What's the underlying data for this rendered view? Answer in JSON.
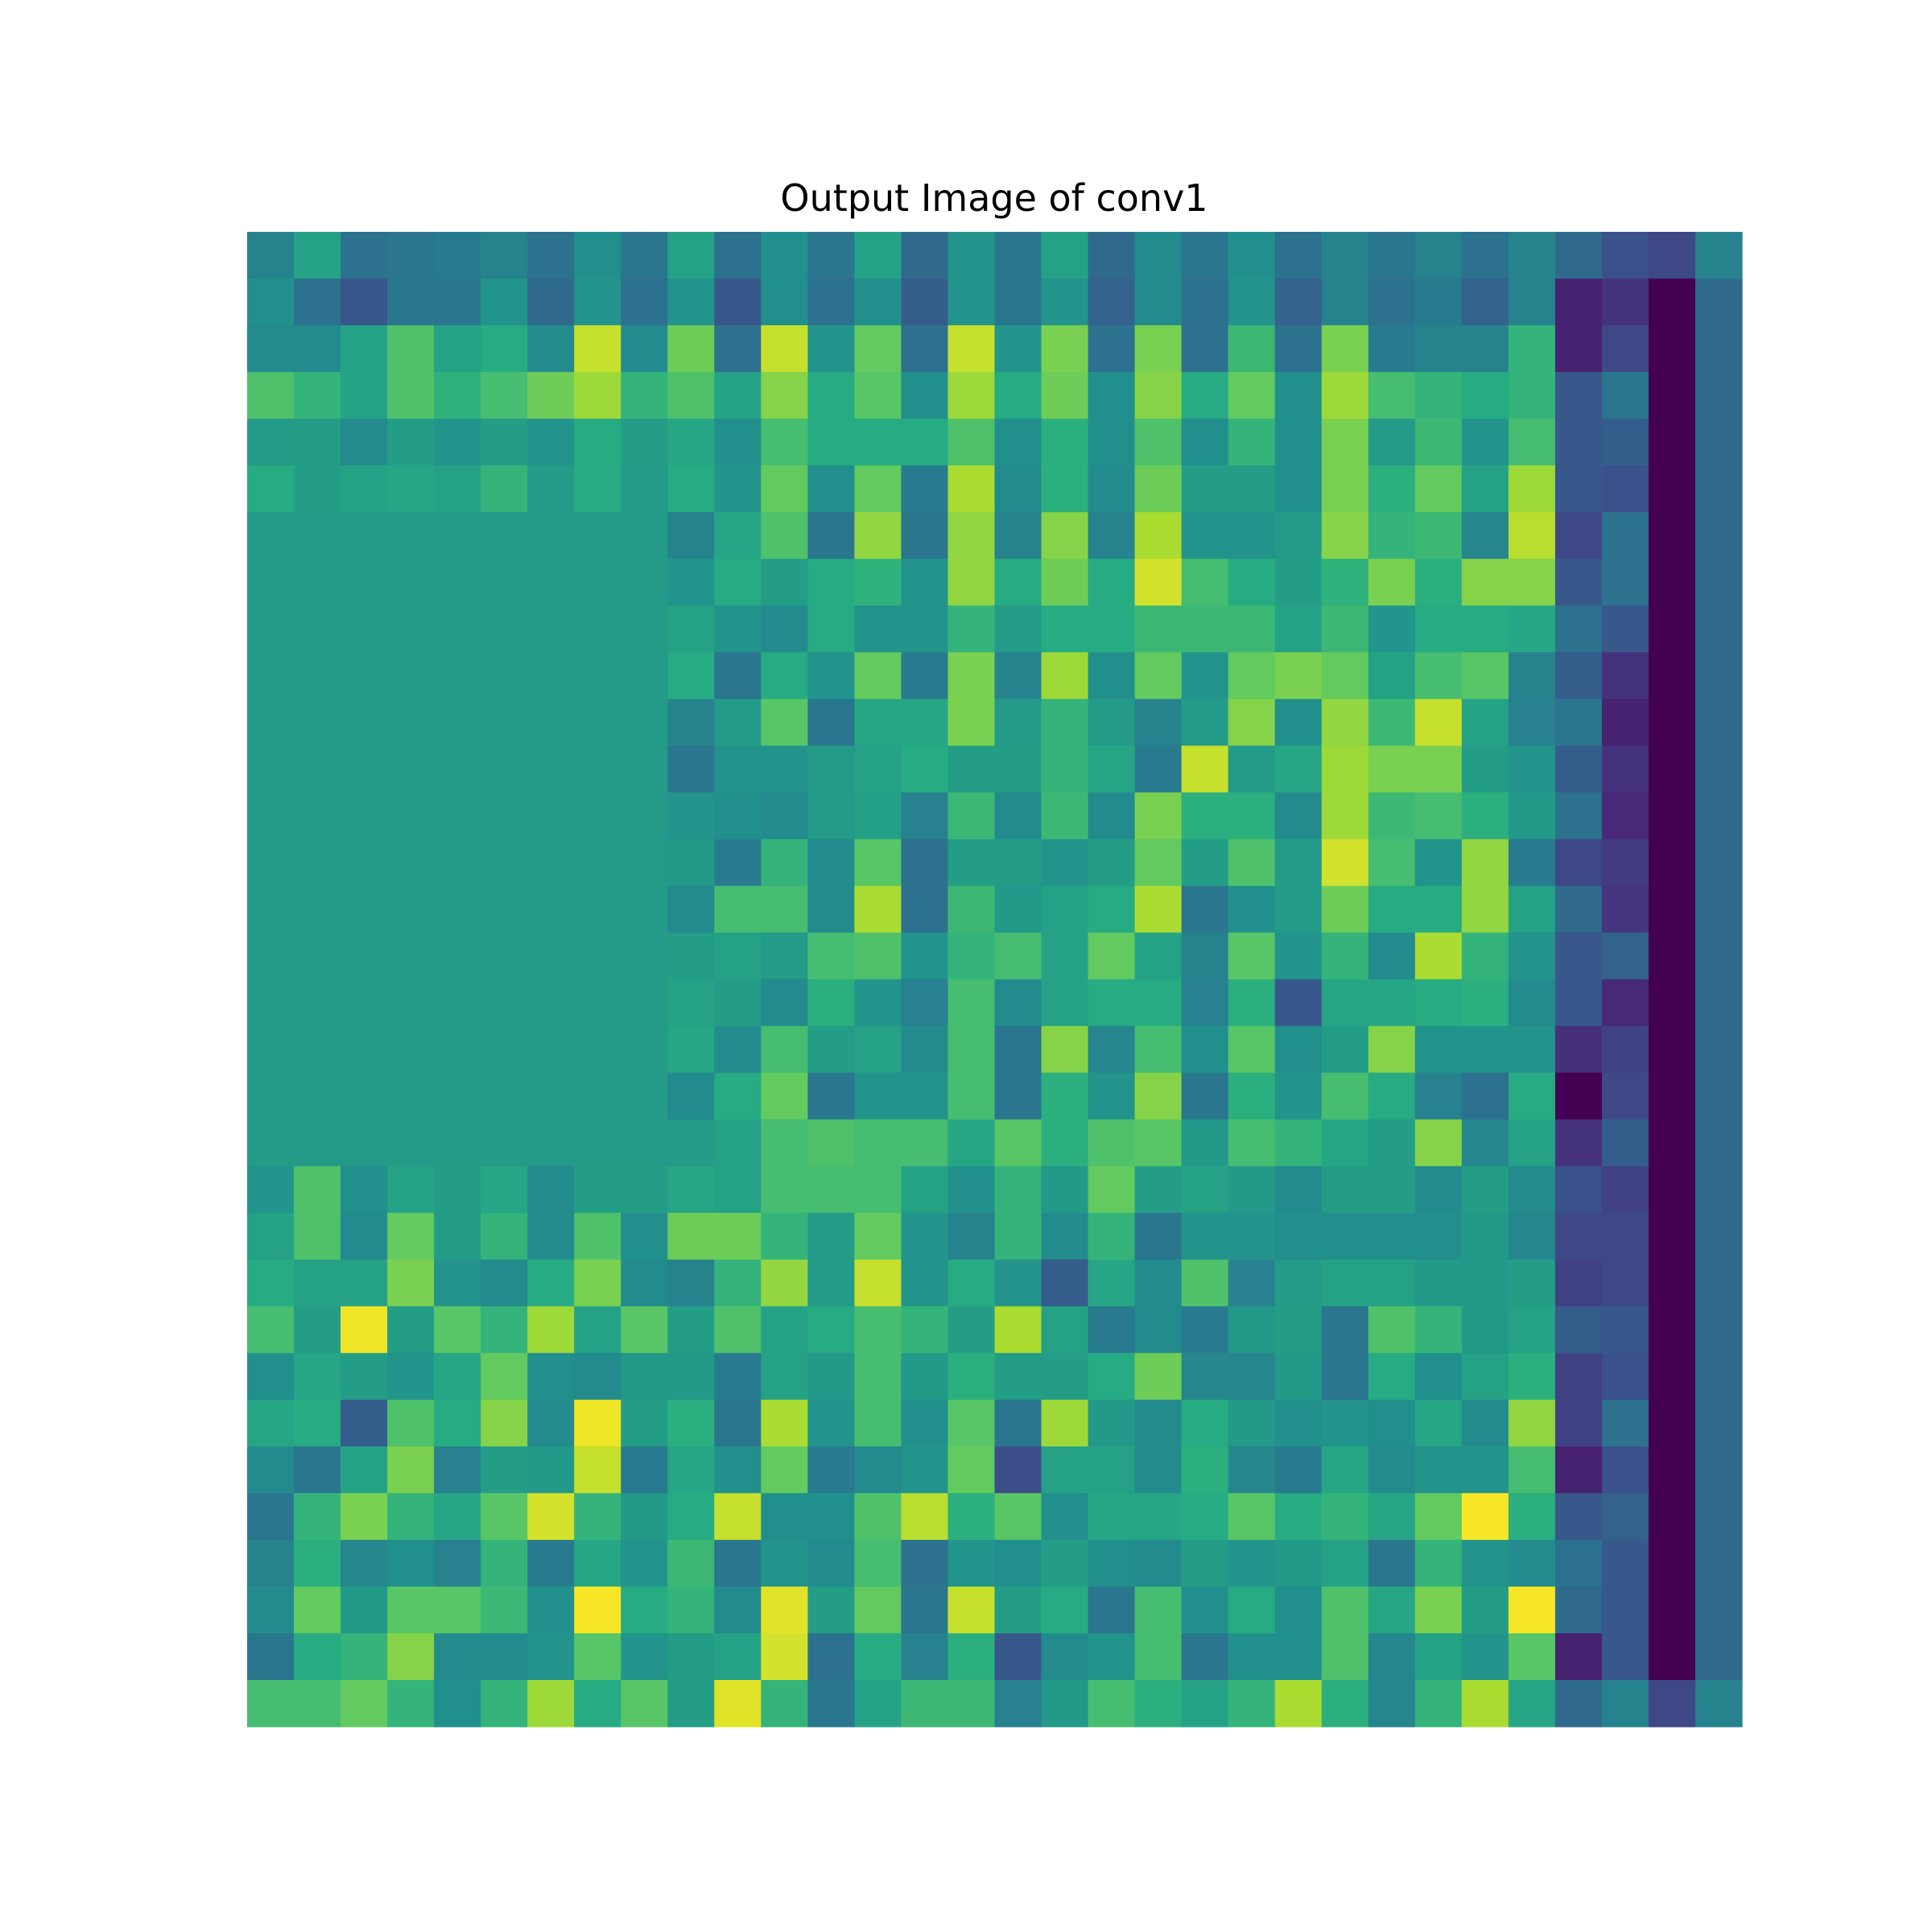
{
  "chart_data": {
    "type": "heatmap",
    "title": "Output Image of conv1",
    "colormap": "viridis",
    "value_range": [
      0,
      1
    ],
    "rows": 32,
    "cols": 32,
    "axes_visible": false,
    "values": [
      [
        0.45,
        0.58,
        0.38,
        0.4,
        0.42,
        0.45,
        0.38,
        0.5,
        0.4,
        0.58,
        0.38,
        0.5,
        0.4,
        0.58,
        0.35,
        0.52,
        0.4,
        0.58,
        0.35,
        0.48,
        0.4,
        0.5,
        0.38,
        0.45,
        0.4,
        0.45,
        0.38,
        0.45,
        0.35,
        0.25,
        0.22,
        0.45
      ],
      [
        0.5,
        0.38,
        0.28,
        0.4,
        0.4,
        0.52,
        0.35,
        0.52,
        0.38,
        0.52,
        0.28,
        0.5,
        0.38,
        0.5,
        0.3,
        0.52,
        0.4,
        0.52,
        0.32,
        0.48,
        0.38,
        0.52,
        0.32,
        0.45,
        0.38,
        0.42,
        0.32,
        0.45,
        0.1,
        0.15,
        0.0,
        0.35
      ],
      [
        0.48,
        0.48,
        0.58,
        0.72,
        0.58,
        0.62,
        0.48,
        0.92,
        0.48,
        0.78,
        0.38,
        0.92,
        0.52,
        0.76,
        0.38,
        0.92,
        0.52,
        0.8,
        0.38,
        0.8,
        0.38,
        0.68,
        0.38,
        0.8,
        0.42,
        0.45,
        0.45,
        0.66,
        0.1,
        0.22,
        0.0,
        0.35
      ],
      [
        0.72,
        0.66,
        0.58,
        0.72,
        0.65,
        0.7,
        0.78,
        0.86,
        0.66,
        0.72,
        0.58,
        0.82,
        0.62,
        0.74,
        0.5,
        0.86,
        0.62,
        0.78,
        0.5,
        0.82,
        0.62,
        0.76,
        0.5,
        0.86,
        0.7,
        0.66,
        0.62,
        0.66,
        0.28,
        0.4,
        0.0,
        0.35
      ],
      [
        0.55,
        0.56,
        0.48,
        0.56,
        0.52,
        0.56,
        0.52,
        0.62,
        0.56,
        0.6,
        0.5,
        0.7,
        0.62,
        0.62,
        0.62,
        0.72,
        0.5,
        0.64,
        0.5,
        0.72,
        0.5,
        0.66,
        0.5,
        0.8,
        0.55,
        0.68,
        0.52,
        0.7,
        0.28,
        0.3,
        0.0,
        0.35
      ],
      [
        0.62,
        0.56,
        0.58,
        0.6,
        0.58,
        0.66,
        0.55,
        0.62,
        0.55,
        0.62,
        0.52,
        0.76,
        0.5,
        0.76,
        0.42,
        0.88,
        0.48,
        0.64,
        0.48,
        0.78,
        0.56,
        0.56,
        0.5,
        0.8,
        0.64,
        0.76,
        0.58,
        0.86,
        0.28,
        0.25,
        0.0,
        0.35
      ],
      [
        0.55,
        0.55,
        0.55,
        0.55,
        0.55,
        0.55,
        0.55,
        0.55,
        0.55,
        0.45,
        0.6,
        0.72,
        0.4,
        0.84,
        0.4,
        0.84,
        0.45,
        0.82,
        0.45,
        0.88,
        0.52,
        0.52,
        0.55,
        0.82,
        0.66,
        0.68,
        0.46,
        0.9,
        0.22,
        0.38,
        0.0,
        0.35
      ],
      [
        0.55,
        0.55,
        0.55,
        0.55,
        0.55,
        0.55,
        0.55,
        0.55,
        0.55,
        0.52,
        0.62,
        0.56,
        0.62,
        0.65,
        0.52,
        0.84,
        0.62,
        0.78,
        0.62,
        0.94,
        0.7,
        0.62,
        0.56,
        0.65,
        0.8,
        0.64,
        0.82,
        0.82,
        0.28,
        0.38,
        0.0,
        0.35
      ],
      [
        0.55,
        0.55,
        0.55,
        0.55,
        0.55,
        0.55,
        0.55,
        0.55,
        0.55,
        0.58,
        0.52,
        0.48,
        0.62,
        0.52,
        0.52,
        0.66,
        0.55,
        0.62,
        0.62,
        0.68,
        0.68,
        0.68,
        0.58,
        0.68,
        0.52,
        0.62,
        0.62,
        0.6,
        0.38,
        0.28,
        0.0,
        0.35
      ],
      [
        0.55,
        0.55,
        0.55,
        0.55,
        0.55,
        0.55,
        0.55,
        0.55,
        0.55,
        0.62,
        0.4,
        0.62,
        0.52,
        0.76,
        0.42,
        0.8,
        0.45,
        0.86,
        0.5,
        0.76,
        0.52,
        0.76,
        0.8,
        0.76,
        0.58,
        0.7,
        0.74,
        0.45,
        0.3,
        0.15,
        0.0,
        0.35
      ],
      [
        0.55,
        0.55,
        0.55,
        0.55,
        0.55,
        0.55,
        0.55,
        0.55,
        0.55,
        0.45,
        0.55,
        0.74,
        0.4,
        0.6,
        0.6,
        0.8,
        0.55,
        0.66,
        0.55,
        0.45,
        0.55,
        0.82,
        0.5,
        0.84,
        0.68,
        0.92,
        0.58,
        0.44,
        0.4,
        0.1,
        0.0,
        0.35
      ],
      [
        0.55,
        0.55,
        0.55,
        0.55,
        0.55,
        0.55,
        0.55,
        0.55,
        0.55,
        0.4,
        0.52,
        0.52,
        0.55,
        0.58,
        0.62,
        0.56,
        0.56,
        0.66,
        0.6,
        0.42,
        0.92,
        0.55,
        0.6,
        0.86,
        0.8,
        0.8,
        0.56,
        0.52,
        0.3,
        0.15,
        0.0,
        0.35
      ],
      [
        0.55,
        0.55,
        0.55,
        0.55,
        0.55,
        0.55,
        0.55,
        0.55,
        0.55,
        0.52,
        0.5,
        0.48,
        0.55,
        0.57,
        0.44,
        0.68,
        0.48,
        0.68,
        0.48,
        0.8,
        0.64,
        0.64,
        0.48,
        0.86,
        0.68,
        0.7,
        0.64,
        0.54,
        0.38,
        0.12,
        0.0,
        0.35
      ],
      [
        0.55,
        0.55,
        0.55,
        0.55,
        0.55,
        0.55,
        0.55,
        0.55,
        0.55,
        0.54,
        0.42,
        0.66,
        0.48,
        0.74,
        0.38,
        0.56,
        0.56,
        0.52,
        0.56,
        0.76,
        0.56,
        0.72,
        0.55,
        0.94,
        0.7,
        0.52,
        0.84,
        0.42,
        0.22,
        0.18,
        0.0,
        0.35
      ],
      [
        0.55,
        0.55,
        0.55,
        0.55,
        0.55,
        0.55,
        0.55,
        0.55,
        0.55,
        0.48,
        0.7,
        0.7,
        0.48,
        0.88,
        0.38,
        0.68,
        0.54,
        0.58,
        0.62,
        0.88,
        0.4,
        0.5,
        0.55,
        0.78,
        0.62,
        0.62,
        0.84,
        0.58,
        0.35,
        0.16,
        0.0,
        0.35
      ],
      [
        0.55,
        0.55,
        0.55,
        0.55,
        0.55,
        0.55,
        0.55,
        0.55,
        0.55,
        0.56,
        0.58,
        0.55,
        0.7,
        0.72,
        0.52,
        0.66,
        0.7,
        0.58,
        0.76,
        0.58,
        0.45,
        0.74,
        0.52,
        0.66,
        0.48,
        0.88,
        0.66,
        0.52,
        0.28,
        0.32,
        0.0,
        0.35
      ],
      [
        0.55,
        0.55,
        0.55,
        0.55,
        0.55,
        0.55,
        0.55,
        0.55,
        0.55,
        0.58,
        0.56,
        0.48,
        0.64,
        0.52,
        0.44,
        0.7,
        0.48,
        0.58,
        0.62,
        0.62,
        0.44,
        0.64,
        0.28,
        0.6,
        0.6,
        0.62,
        0.64,
        0.48,
        0.28,
        0.12,
        0.0,
        0.35
      ],
      [
        0.55,
        0.55,
        0.55,
        0.55,
        0.55,
        0.55,
        0.55,
        0.55,
        0.55,
        0.6,
        0.48,
        0.7,
        0.56,
        0.58,
        0.48,
        0.7,
        0.4,
        0.82,
        0.46,
        0.7,
        0.5,
        0.74,
        0.5,
        0.56,
        0.82,
        0.52,
        0.52,
        0.52,
        0.14,
        0.2,
        0.0,
        0.35
      ],
      [
        0.55,
        0.55,
        0.55,
        0.55,
        0.55,
        0.55,
        0.55,
        0.55,
        0.55,
        0.48,
        0.62,
        0.76,
        0.4,
        0.52,
        0.52,
        0.7,
        0.4,
        0.64,
        0.52,
        0.82,
        0.4,
        0.64,
        0.52,
        0.7,
        0.62,
        0.44,
        0.38,
        0.62,
        0.0,
        0.22,
        0.0,
        0.35
      ],
      [
        0.55,
        0.55,
        0.55,
        0.55,
        0.55,
        0.55,
        0.55,
        0.55,
        0.55,
        0.55,
        0.58,
        0.7,
        0.72,
        0.7,
        0.7,
        0.6,
        0.74,
        0.64,
        0.72,
        0.74,
        0.54,
        0.7,
        0.66,
        0.6,
        0.56,
        0.82,
        0.46,
        0.58,
        0.15,
        0.3,
        0.0,
        0.35
      ],
      [
        0.52,
        0.72,
        0.5,
        0.58,
        0.56,
        0.6,
        0.48,
        0.56,
        0.56,
        0.6,
        0.58,
        0.7,
        0.7,
        0.7,
        0.58,
        0.5,
        0.66,
        0.54,
        0.76,
        0.56,
        0.58,
        0.54,
        0.48,
        0.56,
        0.56,
        0.48,
        0.56,
        0.48,
        0.25,
        0.2,
        0.0,
        0.35
      ],
      [
        0.58,
        0.72,
        0.48,
        0.76,
        0.56,
        0.66,
        0.48,
        0.72,
        0.5,
        0.78,
        0.78,
        0.66,
        0.55,
        0.76,
        0.52,
        0.45,
        0.66,
        0.48,
        0.66,
        0.4,
        0.52,
        0.52,
        0.5,
        0.5,
        0.5,
        0.5,
        0.54,
        0.46,
        0.22,
        0.22,
        0.0,
        0.35
      ],
      [
        0.62,
        0.58,
        0.58,
        0.8,
        0.52,
        0.48,
        0.62,
        0.8,
        0.48,
        0.45,
        0.66,
        0.84,
        0.55,
        0.92,
        0.52,
        0.62,
        0.52,
        0.3,
        0.6,
        0.48,
        0.72,
        0.44,
        0.55,
        0.58,
        0.58,
        0.54,
        0.54,
        0.56,
        0.2,
        0.22,
        0.0,
        0.35
      ],
      [
        0.7,
        0.56,
        0.98,
        0.56,
        0.74,
        0.66,
        0.86,
        0.58,
        0.74,
        0.56,
        0.72,
        0.58,
        0.62,
        0.7,
        0.66,
        0.56,
        0.88,
        0.58,
        0.42,
        0.48,
        0.42,
        0.54,
        0.56,
        0.4,
        0.72,
        0.66,
        0.54,
        0.58,
        0.3,
        0.28,
        0.0,
        0.35
      ],
      [
        0.5,
        0.6,
        0.56,
        0.52,
        0.6,
        0.76,
        0.5,
        0.48,
        0.54,
        0.54,
        0.42,
        0.58,
        0.54,
        0.7,
        0.54,
        0.64,
        0.56,
        0.56,
        0.62,
        0.78,
        0.46,
        0.46,
        0.54,
        0.4,
        0.62,
        0.5,
        0.58,
        0.64,
        0.2,
        0.25,
        0.0,
        0.35
      ],
      [
        0.6,
        0.62,
        0.3,
        0.72,
        0.62,
        0.82,
        0.48,
        0.98,
        0.56,
        0.64,
        0.4,
        0.88,
        0.52,
        0.7,
        0.5,
        0.74,
        0.4,
        0.86,
        0.54,
        0.48,
        0.62,
        0.54,
        0.5,
        0.52,
        0.5,
        0.6,
        0.48,
        0.84,
        0.2,
        0.38,
        0.0,
        0.35
      ],
      [
        0.48,
        0.4,
        0.58,
        0.8,
        0.44,
        0.56,
        0.54,
        0.92,
        0.42,
        0.6,
        0.5,
        0.76,
        0.42,
        0.48,
        0.52,
        0.76,
        0.24,
        0.58,
        0.58,
        0.48,
        0.64,
        0.46,
        0.42,
        0.6,
        0.48,
        0.52,
        0.52,
        0.7,
        0.1,
        0.25,
        0.0,
        0.35
      ],
      [
        0.4,
        0.66,
        0.8,
        0.66,
        0.6,
        0.74,
        0.94,
        0.66,
        0.54,
        0.62,
        0.92,
        0.5,
        0.5,
        0.72,
        0.9,
        0.64,
        0.74,
        0.5,
        0.6,
        0.6,
        0.62,
        0.74,
        0.62,
        0.66,
        0.6,
        0.76,
        0.99,
        0.64,
        0.28,
        0.32,
        0.0,
        0.35
      ],
      [
        0.45,
        0.64,
        0.46,
        0.5,
        0.44,
        0.66,
        0.42,
        0.6,
        0.52,
        0.68,
        0.4,
        0.52,
        0.48,
        0.7,
        0.38,
        0.52,
        0.5,
        0.56,
        0.5,
        0.48,
        0.56,
        0.52,
        0.54,
        0.58,
        0.4,
        0.66,
        0.52,
        0.48,
        0.38,
        0.28,
        0.0,
        0.35
      ],
      [
        0.48,
        0.76,
        0.54,
        0.74,
        0.74,
        0.68,
        0.5,
        0.99,
        0.62,
        0.66,
        0.48,
        0.96,
        0.56,
        0.76,
        0.4,
        0.92,
        0.56,
        0.62,
        0.4,
        0.7,
        0.5,
        0.62,
        0.5,
        0.72,
        0.6,
        0.8,
        0.56,
        0.99,
        0.35,
        0.28,
        0.0,
        0.35
      ],
      [
        0.4,
        0.62,
        0.66,
        0.82,
        0.48,
        0.48,
        0.52,
        0.74,
        0.52,
        0.56,
        0.58,
        0.94,
        0.38,
        0.62,
        0.44,
        0.64,
        0.28,
        0.48,
        0.52,
        0.7,
        0.4,
        0.5,
        0.5,
        0.72,
        0.46,
        0.58,
        0.52,
        0.74,
        0.1,
        0.28,
        0.0,
        0.35
      ],
      [
        0.7,
        0.7,
        0.76,
        0.66,
        0.5,
        0.66,
        0.86,
        0.62,
        0.74,
        0.56,
        0.96,
        0.66,
        0.4,
        0.58,
        0.68,
        0.68,
        0.44,
        0.54,
        0.7,
        0.64,
        0.58,
        0.66,
        0.88,
        0.64,
        0.46,
        0.66,
        0.88,
        0.6,
        0.35,
        0.45,
        0.22,
        0.45
      ]
    ]
  }
}
